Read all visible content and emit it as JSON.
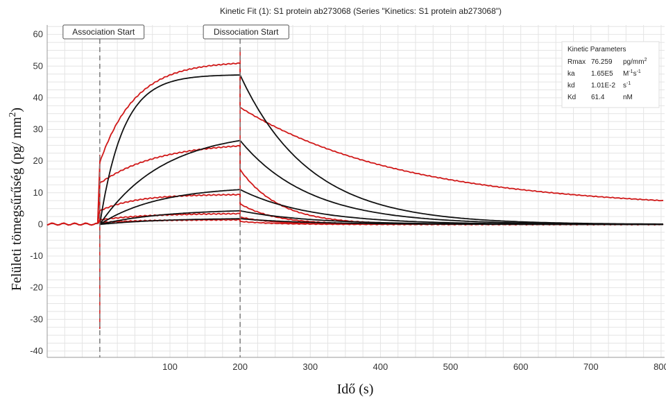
{
  "chart_data": {
    "type": "line",
    "title": "Kinetic Fit (1): S1 protein ab273068 (Series \"Kinetics: S1 protein ab273068\")",
    "xlabel": "Idő (s)",
    "ylabel_main": "Felületi tömegsűrűség (pg/ mm",
    "ylabel_sup": "2",
    "ylabel_close": ")",
    "xlim": [
      -75,
      805
    ],
    "ylim": [
      -42,
      63
    ],
    "xticks": [
      100,
      200,
      300,
      400,
      500,
      600,
      700,
      800
    ],
    "yticks": [
      -40,
      -30,
      -20,
      -10,
      0,
      10,
      20,
      30,
      40,
      50,
      60
    ],
    "grid": true,
    "markers": [
      {
        "x": 0,
        "label": "Association Start"
      },
      {
        "x": 200,
        "label": "Dissociation Start"
      }
    ],
    "kinetic_parameters": {
      "title": "Kinetic Parameters",
      "rows": [
        {
          "name": "Rmax",
          "value": "76.259",
          "unit": "pg/mm",
          "sup": "2"
        },
        {
          "name": "ka",
          "value": "1.65E5",
          "unit": "M",
          "sup": "-1",
          "unit2": "s",
          "sup2": "-1"
        },
        {
          "name": "kd",
          "value": "1.01E-2",
          "unit": "s",
          "sup": "-1"
        },
        {
          "name": "Kd",
          "value": "61.4",
          "unit": "nM",
          "sup": ""
        }
      ]
    },
    "series": [
      {
        "kind": "measured",
        "plateau": 51.5,
        "k": 0.02,
        "fast": 0.38,
        "tail_end": 7.5,
        "tail_kd": 0.0045,
        "tail_fast": 0.32
      },
      {
        "kind": "measured",
        "plateau": 26,
        "k": 0.012,
        "fast": 0.5,
        "tail_end": 0,
        "tail_kd": 0.018,
        "tail_fast": 0.3
      },
      {
        "kind": "measured",
        "plateau": 9.5,
        "k": 0.02,
        "fast": 0.45,
        "tail_end": 0,
        "tail_kd": 0.02,
        "tail_fast": 0.3
      },
      {
        "kind": "measured",
        "plateau": 3.5,
        "k": 0.015,
        "fast": 0.4,
        "tail_end": 0,
        "tail_kd": 0.02,
        "tail_fast": 0.3
      },
      {
        "kind": "measured",
        "plateau": 1.5,
        "k": 0.015,
        "fast": 0.4,
        "tail_end": 0,
        "tail_kd": 0.02,
        "tail_fast": 0.3
      },
      {
        "kind": "fit",
        "plateau": 47.2,
        "k": 0.03
      },
      {
        "kind": "fit",
        "plateau": 26.5,
        "k": 0.011
      },
      {
        "kind": "fit",
        "plateau": 11.0,
        "k": 0.012
      },
      {
        "kind": "fit",
        "plateau": 4.3,
        "k": 0.011
      },
      {
        "kind": "fit",
        "plateau": 1.8,
        "k": 0.011
      }
    ],
    "fit_kd": 0.0101,
    "colors": {
      "measured": "#d01818",
      "fit": "#111111",
      "grid": "#e4e4e4",
      "axis": "#999999",
      "marker": "#7a7a7a"
    }
  }
}
